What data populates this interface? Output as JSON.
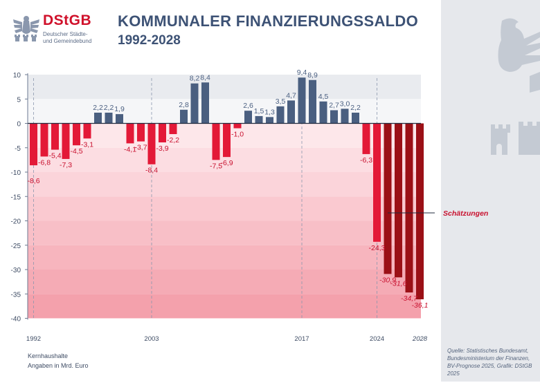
{
  "header": {
    "logo_text": "DStGB",
    "logo_subline_1": "Deutscher Städte-",
    "logo_subline_2": "und Gemeindebund",
    "title": "KOMMUNALER FINANZIERUNGSSALDO",
    "subtitle": "1992-2028"
  },
  "footer": {
    "note_line_1": "Kernhaushalte",
    "note_line_2": "Angaben in Mrd. Euro",
    "source_line_1": "Quelle: Statistisches Bundesamt,",
    "source_line_2": "Bundesministerium der Finanzen,",
    "source_line_3": "BV-Prognose 2025, Grafik: DStGB 2025"
  },
  "colors": {
    "positive": "#4a5f80",
    "negative": "#e31937",
    "estimate": "#9b1016",
    "title": "#3d5275",
    "annotation": "#c8102e"
  },
  "chart_data": {
    "type": "bar",
    "x": [
      1992,
      1993,
      1994,
      1995,
      1996,
      1997,
      1998,
      1999,
      2000,
      2001,
      2002,
      2003,
      2004,
      2005,
      2006,
      2007,
      2008,
      2009,
      2010,
      2011,
      2012,
      2013,
      2014,
      2015,
      2016,
      2017,
      2018,
      2019,
      2020,
      2021,
      2022,
      2023,
      2024,
      2025,
      2026,
      2027,
      2028
    ],
    "values": [
      -8.6,
      -6.8,
      -5.4,
      -7.3,
      -4.5,
      -3.1,
      2.2,
      2.2,
      1.9,
      -4.1,
      -3.7,
      -8.4,
      -3.9,
      -2.2,
      2.8,
      8.2,
      8.4,
      -7.5,
      -6.9,
      -1.0,
      2.6,
      1.5,
      1.3,
      3.5,
      4.7,
      9.4,
      8.9,
      4.5,
      2.7,
      3.0,
      2.2,
      -6.3,
      -24.3,
      -30.9,
      -31.6,
      -34.7,
      -36.1
    ],
    "value_labels": [
      "-8,6",
      "-6,8",
      "-5,4",
      "-7,3",
      "-4,5",
      "-3,1",
      "2,2",
      "2,2",
      "1,9",
      "-4,1",
      "-3,7",
      "-8,4",
      "-3,9",
      "-2,2",
      "2,8",
      "8,2",
      "8,4",
      "-7,5",
      "-6,9",
      "-1,0",
      "2,6",
      "1,5",
      "1,3",
      "3,5",
      "4,7",
      "9,4",
      "8,9",
      "4,5",
      "2,7",
      "3,0",
      "2,2",
      "-6,3",
      "-24,3",
      "-30,9",
      "-31,6",
      "-34,7",
      "-36,1"
    ],
    "estimate_from": 2025,
    "x_tick_labels": [
      {
        "year": 1992,
        "label": "1992"
      },
      {
        "year": 2003,
        "label": "2003"
      },
      {
        "year": 2017,
        "label": "2017"
      },
      {
        "year": 2024,
        "label": "2024"
      },
      {
        "year": 2028,
        "label": "2028"
      }
    ],
    "y_ticks": [
      10,
      5,
      0,
      -5,
      -10,
      -15,
      -20,
      -25,
      -30,
      -35,
      -40
    ],
    "y_tick_labels": [
      "10",
      "5",
      "0",
      "-5",
      "-10",
      "-15",
      "-20",
      "-25",
      "-30",
      "-35",
      "-40"
    ],
    "ylim": [
      -40,
      10
    ],
    "annotation": "Schätzungen",
    "title": "KOMMUNALER FINANZIERUNGSSALDO",
    "subtitle": "1992-2028",
    "xlabel": "",
    "ylabel": ""
  }
}
